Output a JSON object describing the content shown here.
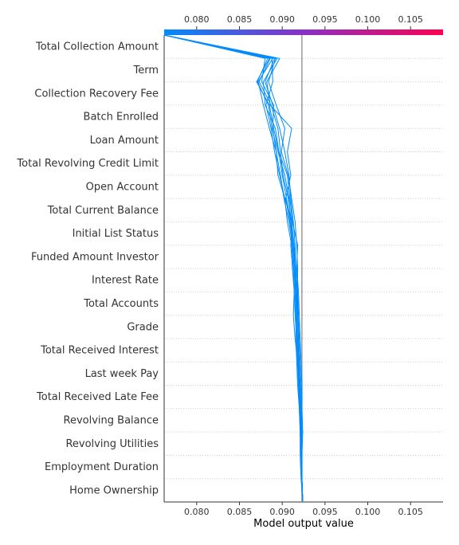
{
  "chart_data": {
    "type": "decision_plot",
    "xlabel": "Model output value",
    "xlim": [
      0.0762,
      0.1088
    ],
    "base_value": 0.0923,
    "colorbar": {
      "low_color": "#008bfb",
      "mid_color": "#8a30c5",
      "high_color": "#ff0052"
    },
    "x_ticks": [
      "0.080",
      "0.085",
      "0.090",
      "0.095",
      "0.100",
      "0.105"
    ],
    "x_tick_values": [
      0.08,
      0.085,
      0.09,
      0.095,
      0.1,
      0.105
    ],
    "features": [
      "Total Collection Amount",
      "Term",
      "Collection Recovery Fee",
      "Batch Enrolled",
      "Loan Amount",
      "Total Revolving Credit Limit",
      "Open Account",
      "Total Current Balance",
      "Initial List Status",
      "Funded Amount Investor",
      "Interest Rate",
      "Total Accounts",
      "Grade",
      "Total Received Interest",
      "Last week Pay",
      "Total Received Late Fee",
      "Revolving Balance",
      "Revolving Utilities",
      "Employment Duration",
      "Home Ownership"
    ],
    "line_color": "#008bfb",
    "series": [
      {
        "values": [
          0.0762,
          0.0889,
          0.0872,
          0.0878,
          0.0885,
          0.0893,
          0.0898,
          0.0902,
          0.0908,
          0.0912,
          0.0914,
          0.0915,
          0.0916,
          0.0916,
          0.0917,
          0.0918,
          0.092,
          0.0921,
          0.0922,
          0.0923,
          0.0924
        ]
      },
      {
        "values": [
          0.0762,
          0.0885,
          0.087,
          0.0885,
          0.089,
          0.0896,
          0.09,
          0.0905,
          0.091,
          0.0913,
          0.0915,
          0.0916,
          0.0917,
          0.0918,
          0.0919,
          0.092,
          0.0921,
          0.0922,
          0.0922,
          0.0923,
          0.0924
        ]
      },
      {
        "values": [
          0.0762,
          0.0892,
          0.0884,
          0.0893,
          0.0903,
          0.0899,
          0.0907,
          0.0911,
          0.0915,
          0.0917,
          0.0918,
          0.0918,
          0.0918,
          0.0919,
          0.0919,
          0.092,
          0.0921,
          0.0922,
          0.0922,
          0.0923,
          0.0924
        ]
      },
      {
        "values": [
          0.0762,
          0.088,
          0.0876,
          0.089,
          0.0889,
          0.0893,
          0.0895,
          0.0903,
          0.0912,
          0.091,
          0.0912,
          0.0914,
          0.0913,
          0.0915,
          0.0918,
          0.092,
          0.0922,
          0.0923,
          0.0922,
          0.0923,
          0.0924
        ]
      },
      {
        "values": [
          0.0762,
          0.0897,
          0.0882,
          0.0886,
          0.0911,
          0.0906,
          0.091,
          0.0904,
          0.0909,
          0.0913,
          0.0916,
          0.0918,
          0.0919,
          0.092,
          0.0921,
          0.0922,
          0.0923,
          0.0922,
          0.0923,
          0.0923,
          0.0924
        ]
      },
      {
        "values": [
          0.0762,
          0.0888,
          0.0889,
          0.0881,
          0.0887,
          0.0891,
          0.0897,
          0.0903,
          0.0906,
          0.0911,
          0.0913,
          0.0914,
          0.0915,
          0.0917,
          0.0918,
          0.0919,
          0.092,
          0.0921,
          0.0921,
          0.0922,
          0.0924
        ]
      },
      {
        "values": [
          0.0762,
          0.0894,
          0.0878,
          0.088,
          0.0892,
          0.0896,
          0.0906,
          0.0909,
          0.0912,
          0.0918,
          0.0917,
          0.0919,
          0.092,
          0.0921,
          0.0922,
          0.0923,
          0.0923,
          0.0924,
          0.0923,
          0.0923,
          0.0924
        ]
      },
      {
        "values": [
          0.0762,
          0.0886,
          0.0873,
          0.0887,
          0.0895,
          0.0898,
          0.0901,
          0.0907,
          0.0911,
          0.0914,
          0.0916,
          0.0917,
          0.0917,
          0.0918,
          0.0919,
          0.0921,
          0.0922,
          0.0921,
          0.0922,
          0.0923,
          0.0924
        ]
      },
      {
        "values": [
          0.0762,
          0.0883,
          0.0871,
          0.0884,
          0.0888,
          0.0895,
          0.0903,
          0.0908,
          0.091,
          0.0912,
          0.0914,
          0.0916,
          0.0916,
          0.0917,
          0.0918,
          0.0919,
          0.0921,
          0.0922,
          0.0922,
          0.0923,
          0.0924
        ]
      },
      {
        "values": [
          0.0762,
          0.0891,
          0.088,
          0.0889,
          0.0897,
          0.0903,
          0.0908,
          0.091,
          0.0913,
          0.0915,
          0.0916,
          0.0917,
          0.0918,
          0.0919,
          0.092,
          0.0921,
          0.0922,
          0.0922,
          0.0922,
          0.0923,
          0.0924
        ]
      }
    ]
  }
}
